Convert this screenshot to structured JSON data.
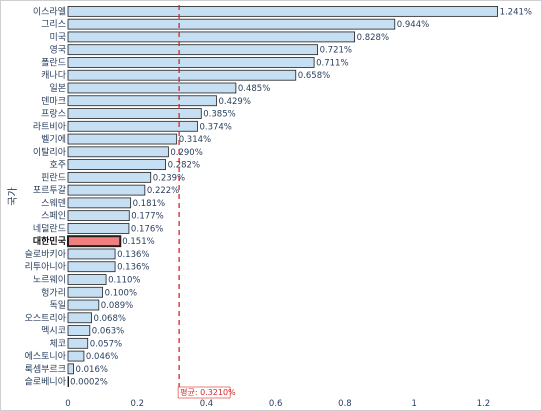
{
  "chart_data": {
    "type": "bar",
    "orientation": "horizontal",
    "ylabel": "국가",
    "xlim": [
      0,
      1.3
    ],
    "x_ticks": [
      "0",
      "0.2",
      "0.4",
      "0.6",
      "0.8",
      "1",
      "1.2"
    ],
    "x_tick_values": [
      0,
      0.2,
      0.4,
      0.6,
      0.8,
      1.0,
      1.2
    ],
    "categories": [
      "이스라엘",
      "그리스",
      "미국",
      "영국",
      "폴란드",
      "캐나다",
      "일본",
      "덴마크",
      "프랑스",
      "라트비아",
      "벨기에",
      "이탈리아",
      "호주",
      "핀란드",
      "포르투갈",
      "스웨덴",
      "스페인",
      "네덜란드",
      "대한민국",
      "슬로바키아",
      "리투아니아",
      "노르웨이",
      "헝가리",
      "독일",
      "오스트리아",
      "멕시코",
      "체코",
      "에스토니아",
      "룩셈부르크",
      "슬로베니아"
    ],
    "values": [
      1.241,
      0.944,
      0.828,
      0.721,
      0.711,
      0.658,
      0.485,
      0.429,
      0.385,
      0.374,
      0.314,
      0.29,
      0.282,
      0.239,
      0.222,
      0.181,
      0.177,
      0.176,
      0.151,
      0.136,
      0.136,
      0.11,
      0.1,
      0.089,
      0.068,
      0.063,
      0.057,
      0.046,
      0.016,
      0.0002
    ],
    "value_labels": [
      "1.241%",
      "0.944%",
      "0.828%",
      "0.721%",
      "0.711%",
      "0.658%",
      "0.485%",
      "0.429%",
      "0.385%",
      "0.374%",
      "0.314%",
      "0.290%",
      "0.282%",
      "0.239%",
      "0.222%",
      "0.181%",
      "0.177%",
      "0.176%",
      "0.151%",
      "0.136%",
      "0.136%",
      "0.110%",
      "0.100%",
      "0.089%",
      "0.068%",
      "0.063%",
      "0.057%",
      "0.046%",
      "0.016%",
      "0.0002%"
    ],
    "highlight_category": "대한민국",
    "average": {
      "value": 0.321,
      "label": "평균: 0.3210%"
    },
    "colors": {
      "bar": "#c6dff2",
      "bar_stroke": "#1f1f1f",
      "highlight_bar": "#f08080",
      "average_line": "#d62728"
    },
    "grid": false
  }
}
